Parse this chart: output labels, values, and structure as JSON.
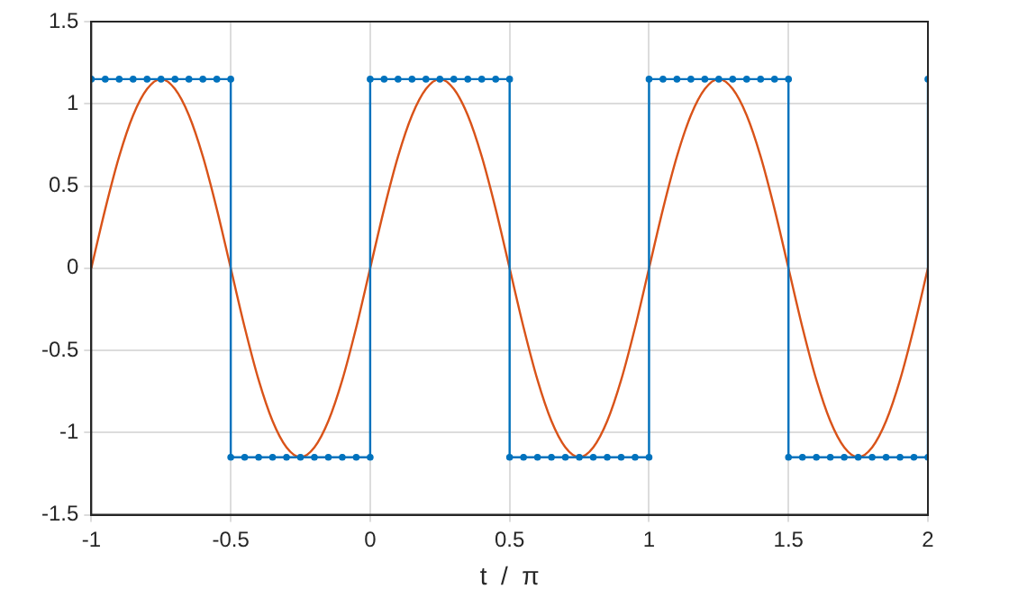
{
  "chart_data": {
    "type": "line",
    "xlabel": "t  /  π",
    "xlim": [
      -1,
      2
    ],
    "xticks": [
      -1,
      -0.5,
      0,
      0.5,
      1,
      1.5,
      2
    ],
    "ylim": [
      -1.5,
      1.5
    ],
    "yticks": [
      -1.5,
      -1,
      -0.5,
      0,
      0.5,
      1,
      1.5
    ],
    "grid": true,
    "legend": false,
    "series": [
      {
        "color": "#0072bd",
        "marker": "circle",
        "x": [
          -1,
          -0.95,
          -0.9,
          -0.85,
          -0.8,
          -0.75,
          -0.7,
          -0.65,
          -0.6,
          -0.55,
          -0.5,
          -0.5,
          -0.45,
          -0.4,
          -0.35,
          -0.3,
          -0.25,
          -0.2,
          -0.15,
          -0.1,
          -0.05,
          0,
          0,
          0.05,
          0.1,
          0.15,
          0.2,
          0.25,
          0.3,
          0.35,
          0.4,
          0.45,
          0.5,
          0.5,
          0.55,
          0.6,
          0.65,
          0.7,
          0.75,
          0.8,
          0.85,
          0.9,
          0.95,
          1,
          1,
          1.05,
          1.1,
          1.15,
          1.2,
          1.25,
          1.3,
          1.35,
          1.4,
          1.45,
          1.5,
          1.5,
          1.55,
          1.6,
          1.65,
          1.7,
          1.75,
          1.8,
          1.85,
          1.9,
          1.95,
          2,
          2
        ],
        "values": [
          1.15,
          1.15,
          1.15,
          1.15,
          1.15,
          1.15,
          1.15,
          1.15,
          1.15,
          1.15,
          1.15,
          -1.15,
          -1.15,
          -1.15,
          -1.15,
          -1.15,
          -1.15,
          -1.15,
          -1.15,
          -1.15,
          -1.15,
          -1.15,
          1.15,
          1.15,
          1.15,
          1.15,
          1.15,
          1.15,
          1.15,
          1.15,
          1.15,
          1.15,
          1.15,
          -1.15,
          -1.15,
          -1.15,
          -1.15,
          -1.15,
          -1.15,
          -1.15,
          -1.15,
          -1.15,
          -1.15,
          -1.15,
          1.15,
          1.15,
          1.15,
          1.15,
          1.15,
          1.15,
          1.15,
          1.15,
          1.15,
          1.15,
          1.15,
          -1.15,
          -1.15,
          -1.15,
          -1.15,
          -1.15,
          -1.15,
          -1.15,
          -1.15,
          -1.15,
          -1.15,
          -1.15,
          1.15
        ]
      },
      {
        "color": "#d95319",
        "marker": "none",
        "x": [
          -1,
          -0.95,
          -0.9,
          -0.85,
          -0.8,
          -0.75,
          -0.7,
          -0.65,
          -0.6,
          -0.55,
          -0.5,
          -0.45,
          -0.4,
          -0.35,
          -0.3,
          -0.25,
          -0.2,
          -0.15,
          -0.1,
          -0.05,
          0,
          0.05,
          0.1,
          0.15,
          0.2,
          0.25,
          0.3,
          0.35,
          0.4,
          0.45,
          0.5,
          0.55,
          0.6,
          0.65,
          0.7,
          0.75,
          0.8,
          0.85,
          0.9,
          0.95,
          1,
          1.05,
          1.1,
          1.15,
          1.2,
          1.25,
          1.3,
          1.35,
          1.4,
          1.45,
          1.5,
          1.55,
          1.6,
          1.65,
          1.7,
          1.75,
          1.8,
          1.85,
          1.9,
          1.95,
          2
        ],
        "values": [
          0,
          0.36,
          0.68,
          0.93,
          1.09,
          1.15,
          1.09,
          0.93,
          0.68,
          0.36,
          0,
          -0.36,
          -0.68,
          -0.93,
          -1.09,
          -1.15,
          -1.09,
          -0.93,
          -0.68,
          -0.36,
          0,
          0.36,
          0.68,
          0.93,
          1.09,
          1.15,
          1.09,
          0.93,
          0.68,
          0.36,
          0,
          -0.36,
          -0.68,
          -0.93,
          -1.09,
          -1.15,
          -1.09,
          -0.93,
          -0.68,
          -0.36,
          0,
          0.36,
          0.68,
          0.93,
          1.09,
          1.15,
          1.09,
          0.93,
          0.68,
          0.36,
          0,
          -0.36,
          -0.68,
          -0.93,
          -1.09,
          -1.15,
          -1.09,
          -0.93,
          -0.68,
          -0.36,
          0
        ]
      }
    ]
  }
}
